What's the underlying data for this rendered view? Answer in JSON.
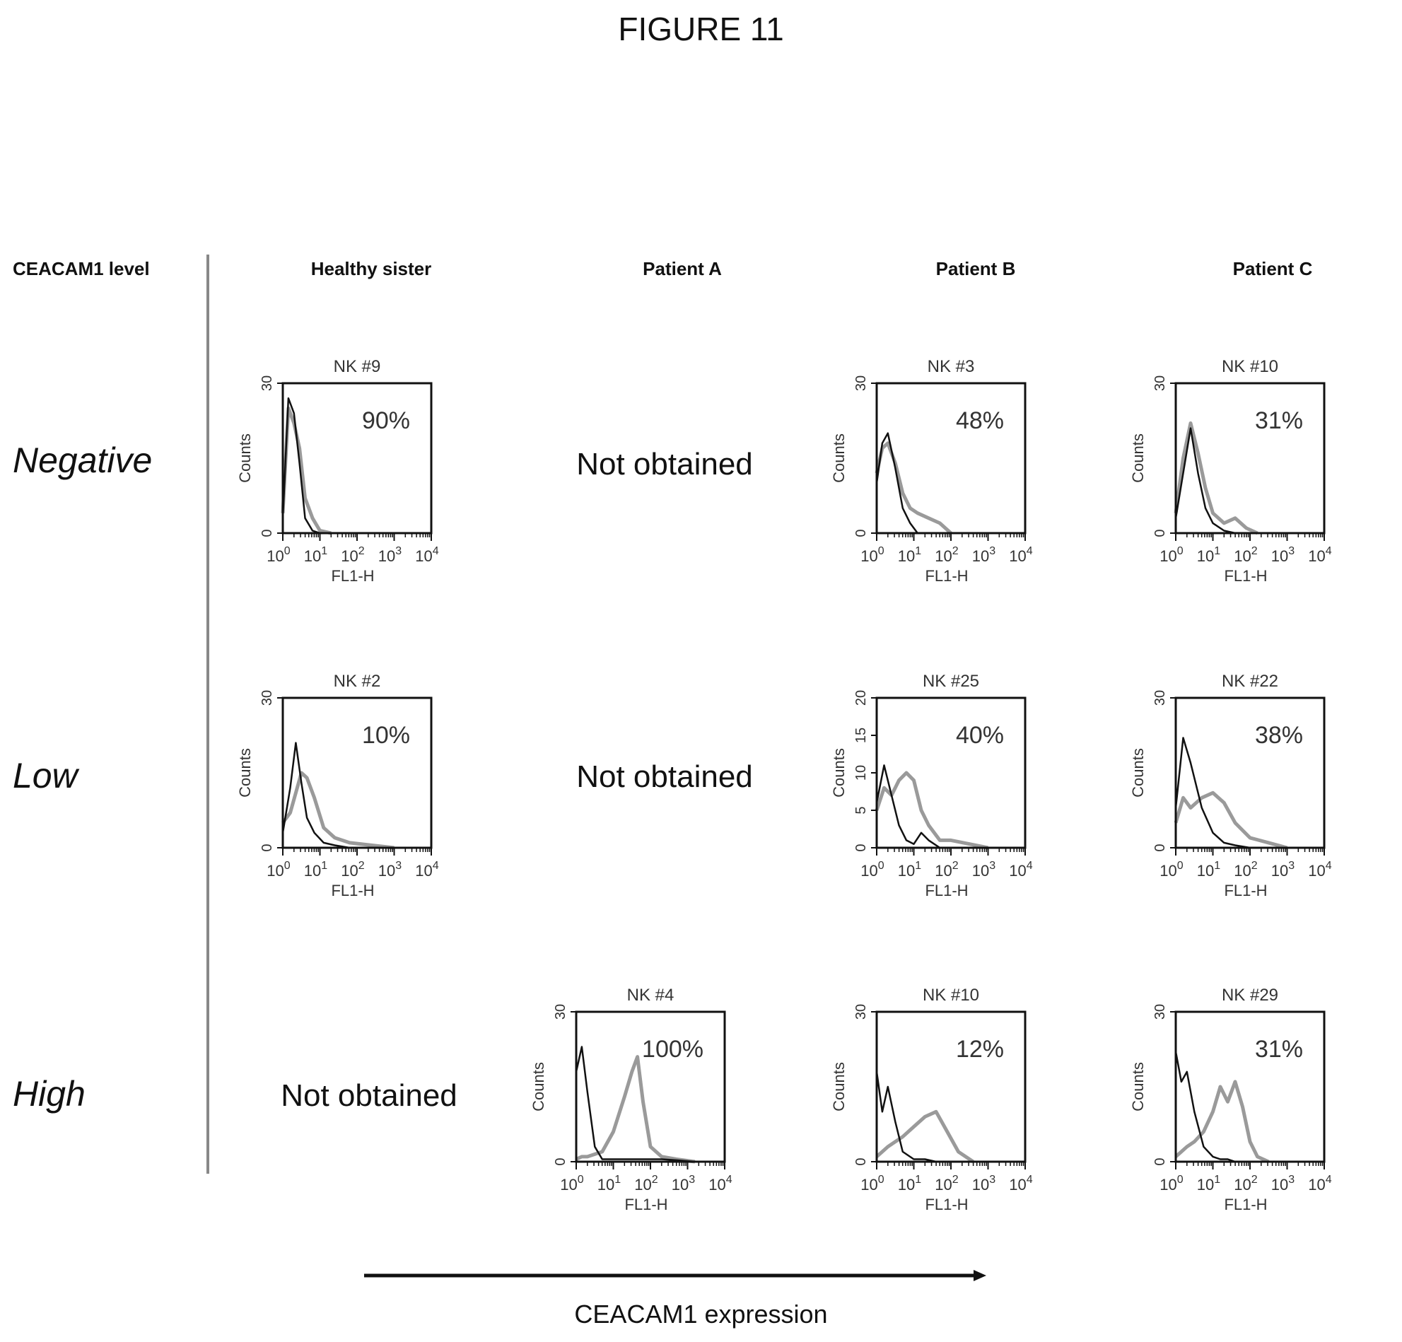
{
  "figure_title": "FIGURE 11",
  "level_header": "CEACAM1 level",
  "columns": [
    "Healthy sister",
    "Patient A",
    "Patient B",
    "Patient C"
  ],
  "rows": [
    "Negative",
    "Low",
    "High"
  ],
  "not_obtained": "Not obtained",
  "axis": {
    "x_label": "FL1-H",
    "y_label": "Counts",
    "x_ticks": [
      "10^0",
      "10^1",
      "10^2",
      "10^3",
      "10^4"
    ],
    "x_scale": "log",
    "x_range": [
      1,
      10000
    ]
  },
  "arrow_label": "CEACAM1 expression",
  "colors": {
    "control": "#111111",
    "stained": "#9a9a9a",
    "frame": "#111111"
  },
  "chart_data": [
    {
      "type": "line",
      "cell": "Negative / Healthy sister",
      "title": "NK #9",
      "percent": "90%",
      "ylim": [
        0,
        30
      ],
      "y_ticks": [
        0,
        30
      ],
      "x_log": [
        0,
        0.15,
        0.3,
        0.45,
        0.6,
        0.8,
        1.0,
        1.3
      ],
      "series": [
        {
          "values": [
            3,
            27,
            24,
            14,
            3,
            0.5,
            0,
            0
          ]
        },
        {
          "values": [
            4,
            25,
            22,
            17,
            7,
            3,
            0.5,
            0
          ]
        }
      ]
    },
    {
      "type": "line",
      "cell": "Negative / Patient B",
      "title": "NK #3",
      "percent": "48%",
      "ylim": [
        0,
        30
      ],
      "y_ticks": [
        0,
        30
      ],
      "x_log": [
        0,
        0.15,
        0.3,
        0.5,
        0.7,
        0.9,
        1.1,
        1.4,
        1.7,
        2.0
      ],
      "series": [
        {
          "values": [
            10,
            18,
            20,
            13,
            5,
            2,
            0,
            0,
            0,
            0
          ]
        },
        {
          "values": [
            12,
            17,
            18,
            14,
            8,
            5,
            4,
            3,
            2,
            0
          ]
        }
      ]
    },
    {
      "type": "line",
      "cell": "Negative / Patient C",
      "title": "NK #10",
      "percent": "31%",
      "ylim": [
        0,
        30
      ],
      "y_ticks": [
        0,
        30
      ],
      "x_log": [
        0,
        0.2,
        0.4,
        0.6,
        0.8,
        1.0,
        1.3,
        1.6,
        1.9,
        2.2
      ],
      "series": [
        {
          "values": [
            3,
            12,
            21,
            12,
            5,
            2,
            0.5,
            0,
            0,
            0
          ]
        },
        {
          "values": [
            4,
            15,
            22,
            16,
            9,
            4,
            2,
            3,
            1,
            0
          ]
        }
      ]
    },
    {
      "type": "line",
      "cell": "Low / Healthy sister",
      "title": "NK #2",
      "percent": "10%",
      "ylim": [
        0,
        30
      ],
      "y_ticks": [
        0,
        30
      ],
      "x_log": [
        0,
        0.2,
        0.35,
        0.5,
        0.65,
        0.85,
        1.1,
        1.4,
        1.8,
        2.4,
        3.0
      ],
      "series": [
        {
          "values": [
            3,
            12,
            21,
            13,
            6,
            3,
            1,
            0.5,
            0,
            0,
            0
          ]
        },
        {
          "values": [
            5,
            7,
            11,
            15,
            14,
            10,
            4,
            2,
            1,
            0.5,
            0
          ]
        }
      ]
    },
    {
      "type": "line",
      "cell": "Low / Patient B",
      "title": "NK #25",
      "percent": "40%",
      "ylim": [
        0,
        20
      ],
      "y_ticks": [
        0,
        5,
        10,
        15,
        20
      ],
      "x_log": [
        0,
        0.2,
        0.4,
        0.6,
        0.8,
        1.0,
        1.2,
        1.4,
        1.7,
        2.0,
        2.5,
        3.0
      ],
      "series": [
        {
          "values": [
            6,
            11,
            7,
            3,
            1,
            0.5,
            2,
            1,
            0,
            0,
            0,
            0
          ]
        },
        {
          "values": [
            5,
            8,
            7,
            9,
            10,
            9,
            5,
            3,
            1,
            1,
            0.5,
            0
          ]
        }
      ]
    },
    {
      "type": "line",
      "cell": "Low / Patient C",
      "title": "NK #22",
      "percent": "38%",
      "ylim": [
        0,
        30
      ],
      "y_ticks": [
        0,
        30
      ],
      "x_log": [
        0,
        0.2,
        0.4,
        0.7,
        1.0,
        1.3,
        1.6,
        2.0,
        2.5,
        3.0
      ],
      "series": [
        {
          "values": [
            8,
            22,
            17,
            8,
            3,
            1,
            0.5,
            0,
            0,
            0
          ]
        },
        {
          "values": [
            5,
            10,
            8,
            10,
            11,
            9,
            5,
            2,
            1,
            0
          ]
        }
      ]
    },
    {
      "type": "line",
      "cell": "High / Patient A",
      "title": "NK #4",
      "percent": "100%",
      "ylim": [
        0,
        30
      ],
      "y_ticks": [
        0,
        30
      ],
      "x_log": [
        0,
        0.15,
        0.3,
        0.5,
        0.7,
        1.0,
        1.3,
        1.5,
        1.65,
        1.8,
        2.0,
        2.3,
        2.7,
        3.2
      ],
      "series": [
        {
          "values": [
            18,
            23,
            14,
            3,
            0.5,
            0.5,
            0.5,
            0.5,
            0.5,
            0.5,
            0.5,
            0.5,
            0.3,
            0
          ]
        },
        {
          "values": [
            0.5,
            1,
            1,
            1.5,
            2,
            6,
            13,
            18,
            21,
            12,
            3,
            1,
            0.5,
            0
          ]
        }
      ]
    },
    {
      "type": "line",
      "cell": "High / Patient B",
      "title": "NK #10",
      "percent": "12%",
      "ylim": [
        0,
        30
      ],
      "y_ticks": [
        0,
        30
      ],
      "x_log": [
        0,
        0.15,
        0.3,
        0.5,
        0.7,
        1.0,
        1.3,
        1.6,
        1.9,
        2.2,
        2.6
      ],
      "series": [
        {
          "values": [
            18,
            10,
            15,
            8,
            2,
            0.5,
            0.5,
            0,
            0,
            0,
            0
          ]
        },
        {
          "values": [
            1,
            2,
            3,
            4,
            5,
            7,
            9,
            10,
            6,
            2,
            0
          ]
        }
      ]
    },
    {
      "type": "line",
      "cell": "High / Patient C",
      "title": "NK #29",
      "percent": "31%",
      "ylim": [
        0,
        30
      ],
      "y_ticks": [
        0,
        30
      ],
      "x_log": [
        0,
        0.15,
        0.3,
        0.5,
        0.75,
        1.0,
        1.2,
        1.4,
        1.6,
        1.8,
        2.0,
        2.2,
        2.5
      ],
      "series": [
        {
          "values": [
            22,
            16,
            18,
            10,
            3,
            1,
            0.5,
            0.5,
            0,
            0,
            0,
            0,
            0
          ]
        },
        {
          "values": [
            1,
            2,
            3,
            4,
            6,
            10,
            15,
            12,
            16,
            11,
            4,
            1,
            0
          ]
        }
      ]
    }
  ]
}
